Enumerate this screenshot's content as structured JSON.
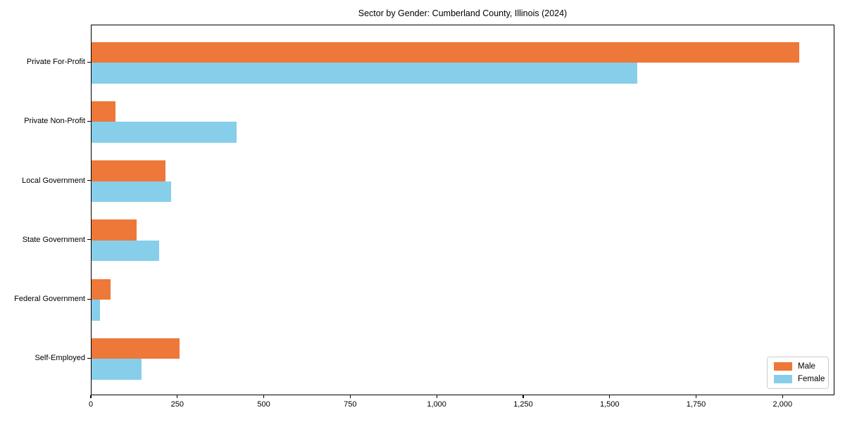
{
  "chart_data": {
    "type": "bar",
    "orientation": "horizontal",
    "title": "Sector by Gender: Cumberland County, Illinois (2024)",
    "categories": [
      "Private For-Profit",
      "Private Non-Profit",
      "Local Government",
      "State Government",
      "Federal Government",
      "Self-Employed"
    ],
    "series": [
      {
        "name": "Male",
        "color": "#ED7839",
        "values": [
          2050,
          70,
          215,
          130,
          55,
          255
        ]
      },
      {
        "name": "Female",
        "color": "#87CEEB",
        "values": [
          1580,
          420,
          230,
          195,
          25,
          145
        ]
      }
    ],
    "xlim": [
      0,
      2150
    ],
    "x_ticks": [
      0,
      250,
      500,
      750,
      1000,
      1250,
      1500,
      1750,
      2000
    ],
    "x_tick_labels": [
      "0",
      "250",
      "500",
      "750",
      "1,000",
      "1,250",
      "1,500",
      "1,750",
      "2,000"
    ],
    "ylabel": "",
    "xlabel": "",
    "grid": false,
    "legend_position": "lower right",
    "axis_color": "#000000",
    "background_color": "#ffffff"
  }
}
